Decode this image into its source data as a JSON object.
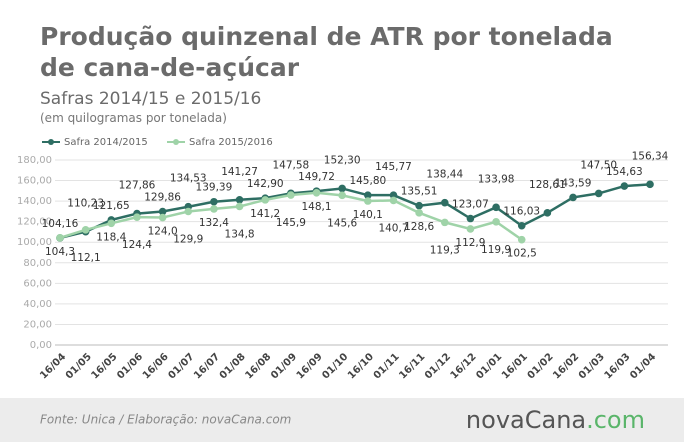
{
  "chart_data": {
    "type": "line",
    "title": [
      "Produção quinzenal de ATR por tonelada",
      "de cana-de-açúcar"
    ],
    "subtitle": "Safras 2014/15 e 2015/16",
    "unit_note": "(em quilogramas por tonelada)",
    "source": "Fonte: Unica / Elaboração: novaCana.com",
    "logo": [
      "novaCana",
      ".com"
    ],
    "categories": [
      "16/04",
      "01/05",
      "16/05",
      "01/06",
      "16/06",
      "01/07",
      "16/07",
      "01/08",
      "16/08",
      "01/09",
      "16/09",
      "01/10",
      "16/10",
      "01/11",
      "16/11",
      "01/12",
      "16/12",
      "01/01",
      "16/01",
      "01/02",
      "16/02",
      "01/03",
      "16/03",
      "01/04"
    ],
    "series": [
      {
        "name": "Safra 2014/2015",
        "color": "#2e6e63",
        "values": [
          104.16,
          110.23,
          121.65,
          127.86,
          129.86,
          134.53,
          139.39,
          141.27,
          142.9,
          147.58,
          149.72,
          152.3,
          145.8,
          145.77,
          135.51,
          138.44,
          123.07,
          133.98,
          116.03,
          128.61,
          143.59,
          147.5,
          154.63,
          156.34
        ],
        "value_labels": [
          "104,16",
          "110,23",
          "121,65",
          "127,86",
          "129,86",
          "134,53",
          "139,39",
          "141,27",
          "142,90",
          "147,58",
          "149,72",
          "152,30",
          "145,80",
          "145,77",
          "135,51",
          "138,44",
          "123,07",
          "133,98",
          "116,03",
          "128,61",
          "143,59",
          "147,50",
          "154,63",
          "156,34"
        ]
      },
      {
        "name": "Safra 2015/2016",
        "color": "#9fd3a8",
        "values": [
          104.3,
          112.1,
          118.4,
          124.4,
          124.0,
          129.9,
          132.4,
          134.8,
          141.2,
          145.9,
          148.1,
          145.6,
          140.1,
          140.7,
          128.6,
          119.3,
          112.9,
          119.9,
          102.5,
          null,
          null,
          null,
          null,
          null
        ],
        "value_labels": [
          "104,3",
          "112,1",
          "118,4",
          "124,4",
          "124,0",
          "129,9",
          "132,4",
          "134,8",
          "141,2",
          "145,9",
          "148,1",
          "145,6",
          "140,1",
          "140,7",
          "128,6",
          "119,3",
          "112,9",
          "119,9",
          "102,5",
          null,
          null,
          null,
          null,
          null
        ]
      }
    ],
    "ylim": [
      0,
      180
    ],
    "yticks": [
      {
        "value": 0,
        "label": "0,00"
      },
      {
        "value": 20,
        "label": "20,00"
      },
      {
        "value": 40,
        "label": "40,00"
      },
      {
        "value": 60,
        "label": "60,00"
      },
      {
        "value": 80,
        "label": "80,00"
      },
      {
        "value": 100,
        "label": "100,00"
      },
      {
        "value": 120,
        "label": "120,00"
      },
      {
        "value": 140,
        "label": "140,00"
      },
      {
        "value": 160,
        "label": "160,00"
      },
      {
        "value": 180,
        "label": "180,00"
      }
    ],
    "grid": true,
    "legend": "top-left"
  }
}
